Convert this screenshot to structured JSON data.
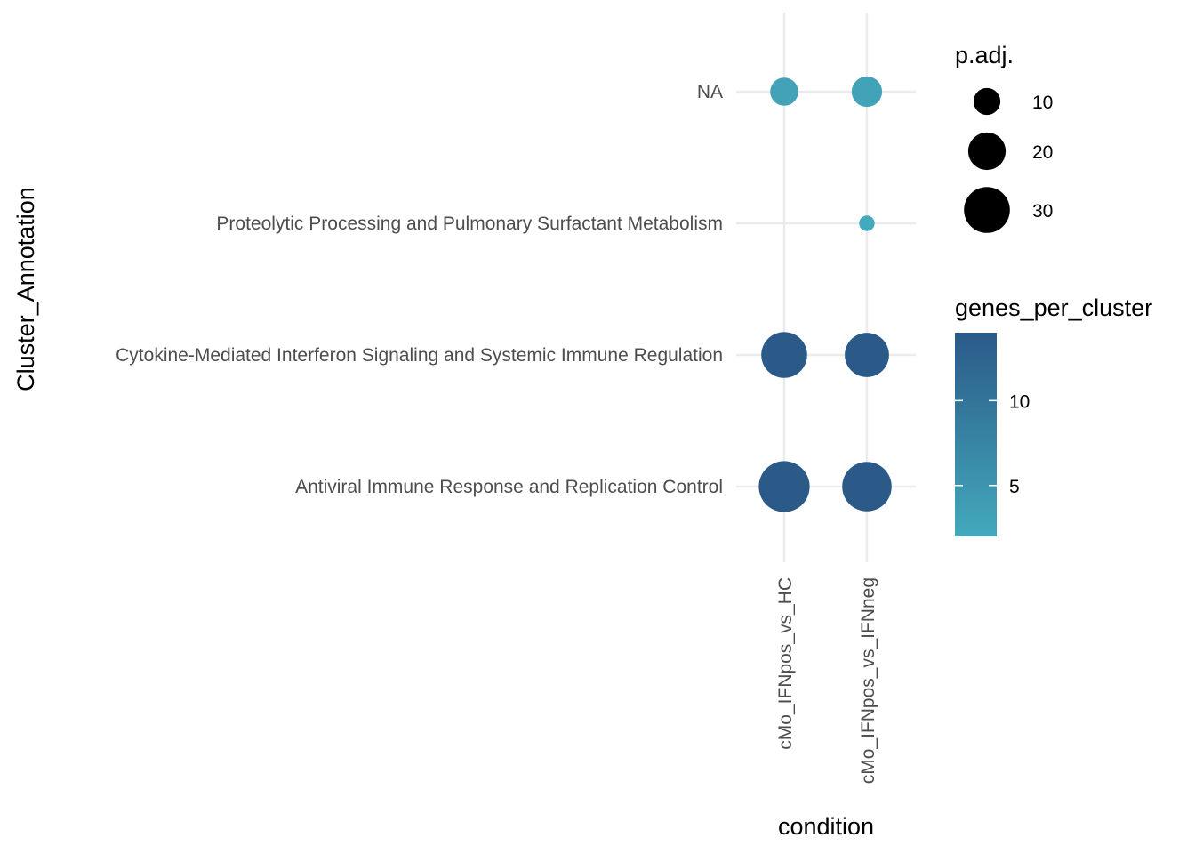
{
  "chart_data": {
    "type": "scatter",
    "xlabel": "condition",
    "ylabel": "Cluster_Annotation",
    "x_categories": [
      "cMo_IFNpos_vs_HC",
      "cMo_IFNpos_vs_IFNneg"
    ],
    "y_categories": [
      "Antiviral Immune Response and Replication Control",
      "Cytokine-Mediated Interferon Signaling and Systemic Immune Regulation",
      "Proteolytic Processing and Pulmonary Surfactant Metabolism",
      "NA"
    ],
    "size_variable": "p.adj.",
    "color_variable": "genes_per_cluster",
    "points": [
      {
        "x": "cMo_IFNpos_vs_HC",
        "y": "NA",
        "size": 11,
        "color": 3
      },
      {
        "x": "cMo_IFNpos_vs_IFNneg",
        "y": "NA",
        "size": 13,
        "color": 3
      },
      {
        "x": "cMo_IFNpos_vs_IFNneg",
        "y": "Proteolytic Processing and Pulmonary Surfactant Metabolism",
        "size": 3,
        "color": 2
      },
      {
        "x": "cMo_IFNpos_vs_HC",
        "y": "Cytokine-Mediated Interferon Signaling and Systemic Immune Regulation",
        "size": 30,
        "color": 14
      },
      {
        "x": "cMo_IFNpos_vs_IFNneg",
        "y": "Cytokine-Mediated Interferon Signaling and Systemic Immune Regulation",
        "size": 28,
        "color": 14
      },
      {
        "x": "cMo_IFNpos_vs_HC",
        "y": "Antiviral Immune Response and Replication Control",
        "size": 37,
        "color": 14
      },
      {
        "x": "cMo_IFNpos_vs_IFNneg",
        "y": "Antiviral Immune Response and Replication Control",
        "size": 35,
        "color": 14
      }
    ],
    "size_legend": {
      "title": "p.adj.",
      "breaks": [
        10,
        20,
        30
      ],
      "labels": [
        "10",
        "20",
        "30"
      ],
      "range": [
        2.5,
        38
      ]
    },
    "color_legend": {
      "title": "genes_per_cluster",
      "breaks": [
        5,
        10
      ],
      "labels": [
        "5",
        "10"
      ],
      "range": [
        2,
        14
      ],
      "low_color": "#43a9bc",
      "high_color": "#2b5a88"
    },
    "grid": true,
    "legend_position": "right"
  }
}
